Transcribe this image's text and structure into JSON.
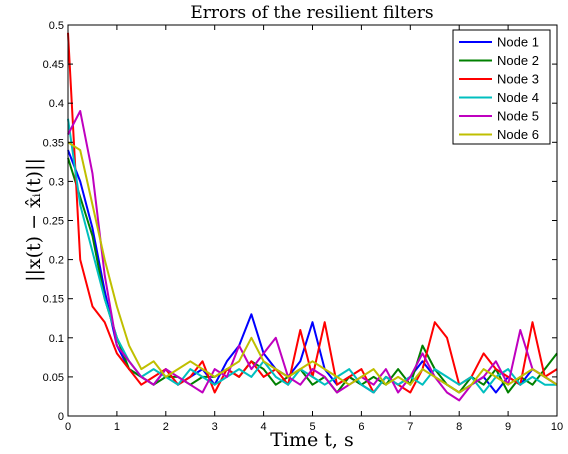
{
  "chart_data": {
    "type": "line",
    "title": "Errors of the resilient filters",
    "xlabel": "Time t, s",
    "ylabel": "||x(t) − x̂ᵢ(t)||",
    "xlim": [
      0,
      10
    ],
    "ylim": [
      0,
      0.5
    ],
    "xticks": [
      0,
      1,
      2,
      3,
      4,
      5,
      6,
      7,
      8,
      9,
      10
    ],
    "yticks": [
      0,
      0.05,
      0.1,
      0.15,
      0.2,
      0.25,
      0.3,
      0.35,
      0.4,
      0.45,
      0.5
    ],
    "xtick_labels": [
      "0",
      "1",
      "2",
      "3",
      "4",
      "5",
      "6",
      "7",
      "8",
      "9",
      "10"
    ],
    "ytick_labels": [
      "0",
      "0.05",
      "0.1",
      "0.15",
      "0.2",
      "0.25",
      "0.3",
      "0.35",
      "0.4",
      "0.45",
      "0.5"
    ],
    "grid": false,
    "legend_position": "top-right",
    "x": [
      0,
      0.25,
      0.5,
      0.75,
      1,
      1.25,
      1.5,
      1.75,
      2,
      2.25,
      2.5,
      2.75,
      3,
      3.25,
      3.5,
      3.75,
      4,
      4.25,
      4.5,
      4.75,
      5,
      5.25,
      5.5,
      5.75,
      6,
      6.25,
      6.5,
      6.75,
      7,
      7.25,
      7.5,
      7.75,
      8,
      8.25,
      8.5,
      8.75,
      9,
      9.25,
      9.5,
      9.75,
      10
    ],
    "series": [
      {
        "name": "Node 1",
        "color": "#0000ff",
        "values": [
          0.34,
          0.3,
          0.24,
          0.16,
          0.09,
          0.06,
          0.05,
          0.04,
          0.06,
          0.04,
          0.05,
          0.06,
          0.04,
          0.07,
          0.09,
          0.13,
          0.08,
          0.06,
          0.05,
          0.07,
          0.12,
          0.06,
          0.04,
          0.05,
          0.04,
          0.03,
          0.05,
          0.04,
          0.05,
          0.07,
          0.05,
          0.04,
          0.03,
          0.04,
          0.05,
          0.03,
          0.05,
          0.04,
          0.06,
          0.05,
          0.04
        ]
      },
      {
        "name": "Node 2",
        "color": "#008000",
        "values": [
          0.33,
          0.28,
          0.23,
          0.15,
          0.1,
          0.06,
          0.05,
          0.04,
          0.05,
          0.05,
          0.04,
          0.05,
          0.05,
          0.06,
          0.05,
          0.07,
          0.06,
          0.04,
          0.05,
          0.06,
          0.04,
          0.05,
          0.03,
          0.05,
          0.04,
          0.05,
          0.04,
          0.06,
          0.04,
          0.09,
          0.06,
          0.04,
          0.03,
          0.05,
          0.04,
          0.06,
          0.03,
          0.05,
          0.04,
          0.06,
          0.08
        ]
      },
      {
        "name": "Node 3",
        "color": "#ff0000",
        "values": [
          0.49,
          0.2,
          0.14,
          0.12,
          0.08,
          0.06,
          0.04,
          0.05,
          0.06,
          0.04,
          0.05,
          0.07,
          0.03,
          0.06,
          0.05,
          0.07,
          0.05,
          0.06,
          0.04,
          0.11,
          0.05,
          0.12,
          0.04,
          0.05,
          0.06,
          0.03,
          0.05,
          0.04,
          0.03,
          0.06,
          0.12,
          0.1,
          0.04,
          0.05,
          0.08,
          0.06,
          0.05,
          0.04,
          0.12,
          0.05,
          0.06
        ]
      },
      {
        "name": "Node 4",
        "color": "#00bfbf",
        "values": [
          0.38,
          0.27,
          0.21,
          0.15,
          0.1,
          0.07,
          0.05,
          0.06,
          0.05,
          0.04,
          0.06,
          0.05,
          0.04,
          0.05,
          0.06,
          0.05,
          0.07,
          0.05,
          0.04,
          0.06,
          0.05,
          0.04,
          0.05,
          0.06,
          0.04,
          0.03,
          0.05,
          0.04,
          0.05,
          0.04,
          0.06,
          0.05,
          0.04,
          0.05,
          0.03,
          0.05,
          0.06,
          0.04,
          0.05,
          0.04,
          0.04
        ]
      },
      {
        "name": "Node 5",
        "color": "#bf00bf",
        "values": [
          0.36,
          0.39,
          0.31,
          0.18,
          0.09,
          0.07,
          0.05,
          0.04,
          0.06,
          0.05,
          0.04,
          0.03,
          0.06,
          0.05,
          0.09,
          0.06,
          0.08,
          0.1,
          0.05,
          0.04,
          0.06,
          0.05,
          0.03,
          0.04,
          0.05,
          0.04,
          0.06,
          0.03,
          0.05,
          0.08,
          0.05,
          0.03,
          0.02,
          0.04,
          0.05,
          0.07,
          0.04,
          0.11,
          0.06,
          0.05,
          0.04
        ]
      },
      {
        "name": "Node 6",
        "color": "#bfbf00",
        "values": [
          0.35,
          0.34,
          0.27,
          0.2,
          0.14,
          0.09,
          0.06,
          0.07,
          0.05,
          0.06,
          0.07,
          0.06,
          0.05,
          0.06,
          0.07,
          0.1,
          0.07,
          0.06,
          0.05,
          0.06,
          0.07,
          0.06,
          0.05,
          0.04,
          0.05,
          0.06,
          0.04,
          0.05,
          0.04,
          0.06,
          0.05,
          0.04,
          0.03,
          0.04,
          0.06,
          0.05,
          0.04,
          0.05,
          0.06,
          0.05,
          0.04
        ]
      }
    ]
  }
}
